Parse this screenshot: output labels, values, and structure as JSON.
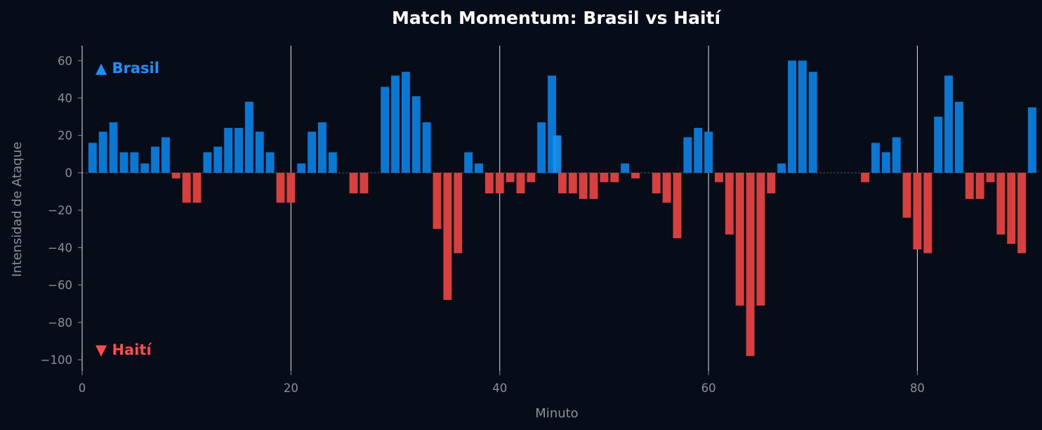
{
  "chart_data": {
    "type": "bar",
    "title": "Match Momentum: Brasil vs Haití",
    "xlabel": "Minuto",
    "ylabel": "Intensidad de Ataque",
    "xlim": [
      0,
      91
    ],
    "ylim": [
      -106,
      68
    ],
    "xticks": [
      0,
      20,
      40,
      60,
      80
    ],
    "yticks": [
      60,
      40,
      20,
      0,
      -20,
      -40,
      -60,
      -80,
      -100
    ],
    "ytick_labels": [
      "60",
      "40",
      "20",
      "0",
      "−20",
      "−40",
      "−60",
      "−80",
      "−100"
    ],
    "vlines": [
      20,
      40,
      60,
      80
    ],
    "grid": false,
    "team_labels": [
      {
        "text": "▲ Brasil",
        "color": "#1e90ff"
      },
      {
        "text": "▼ Haití",
        "color": "#ff4c4c"
      }
    ],
    "colors": {
      "positive": "#0a78d2",
      "negative": "#d84040",
      "highlight": "#1492f5"
    },
    "x": [
      1,
      2,
      3,
      4,
      5,
      6,
      7,
      8,
      9,
      10,
      11,
      12,
      13,
      14,
      15,
      16,
      17,
      18,
      19,
      20,
      21,
      22,
      23,
      24,
      25,
      26,
      27,
      28,
      29,
      30,
      31,
      32,
      33,
      34,
      35,
      36,
      37,
      38,
      39,
      40,
      41,
      42,
      43,
      44,
      45,
      46,
      47,
      48,
      49,
      50,
      51,
      52,
      53,
      54,
      55,
      56,
      57,
      58,
      59,
      60,
      61,
      62,
      63,
      64,
      65,
      66,
      67,
      68,
      69,
      70,
      71,
      72,
      73,
      74,
      75,
      76,
      77,
      78,
      79,
      80,
      81,
      82,
      83,
      84,
      85,
      86,
      87,
      88,
      89,
      90,
      91
    ],
    "values": [
      16,
      22,
      27,
      11,
      11,
      5,
      14,
      19,
      -3,
      -16,
      -16,
      11,
      14,
      24,
      24,
      38,
      22,
      11,
      -16,
      -16,
      5,
      22,
      27,
      11,
      0,
      -11,
      -11,
      0,
      46,
      52,
      54,
      41,
      27,
      -30,
      -68,
      -43,
      11,
      5,
      -11,
      -11,
      -5,
      -11,
      -5,
      27,
      52,
      -11,
      -11,
      -14,
      -14,
      -5,
      -5,
      5,
      -3,
      0,
      -11,
      -16,
      -35,
      19,
      24,
      22,
      -5,
      -33,
      -71,
      -98,
      -71,
      -11,
      5,
      60,
      60,
      54,
      0,
      0,
      0,
      0,
      -5,
      16,
      11,
      19,
      -24,
      -41,
      -43,
      30,
      52,
      38,
      -14,
      -14,
      -5,
      -33,
      -38,
      -43,
      35
    ],
    "highlight": [
      {
        "x": 45.5,
        "value": 20
      }
    ]
  }
}
